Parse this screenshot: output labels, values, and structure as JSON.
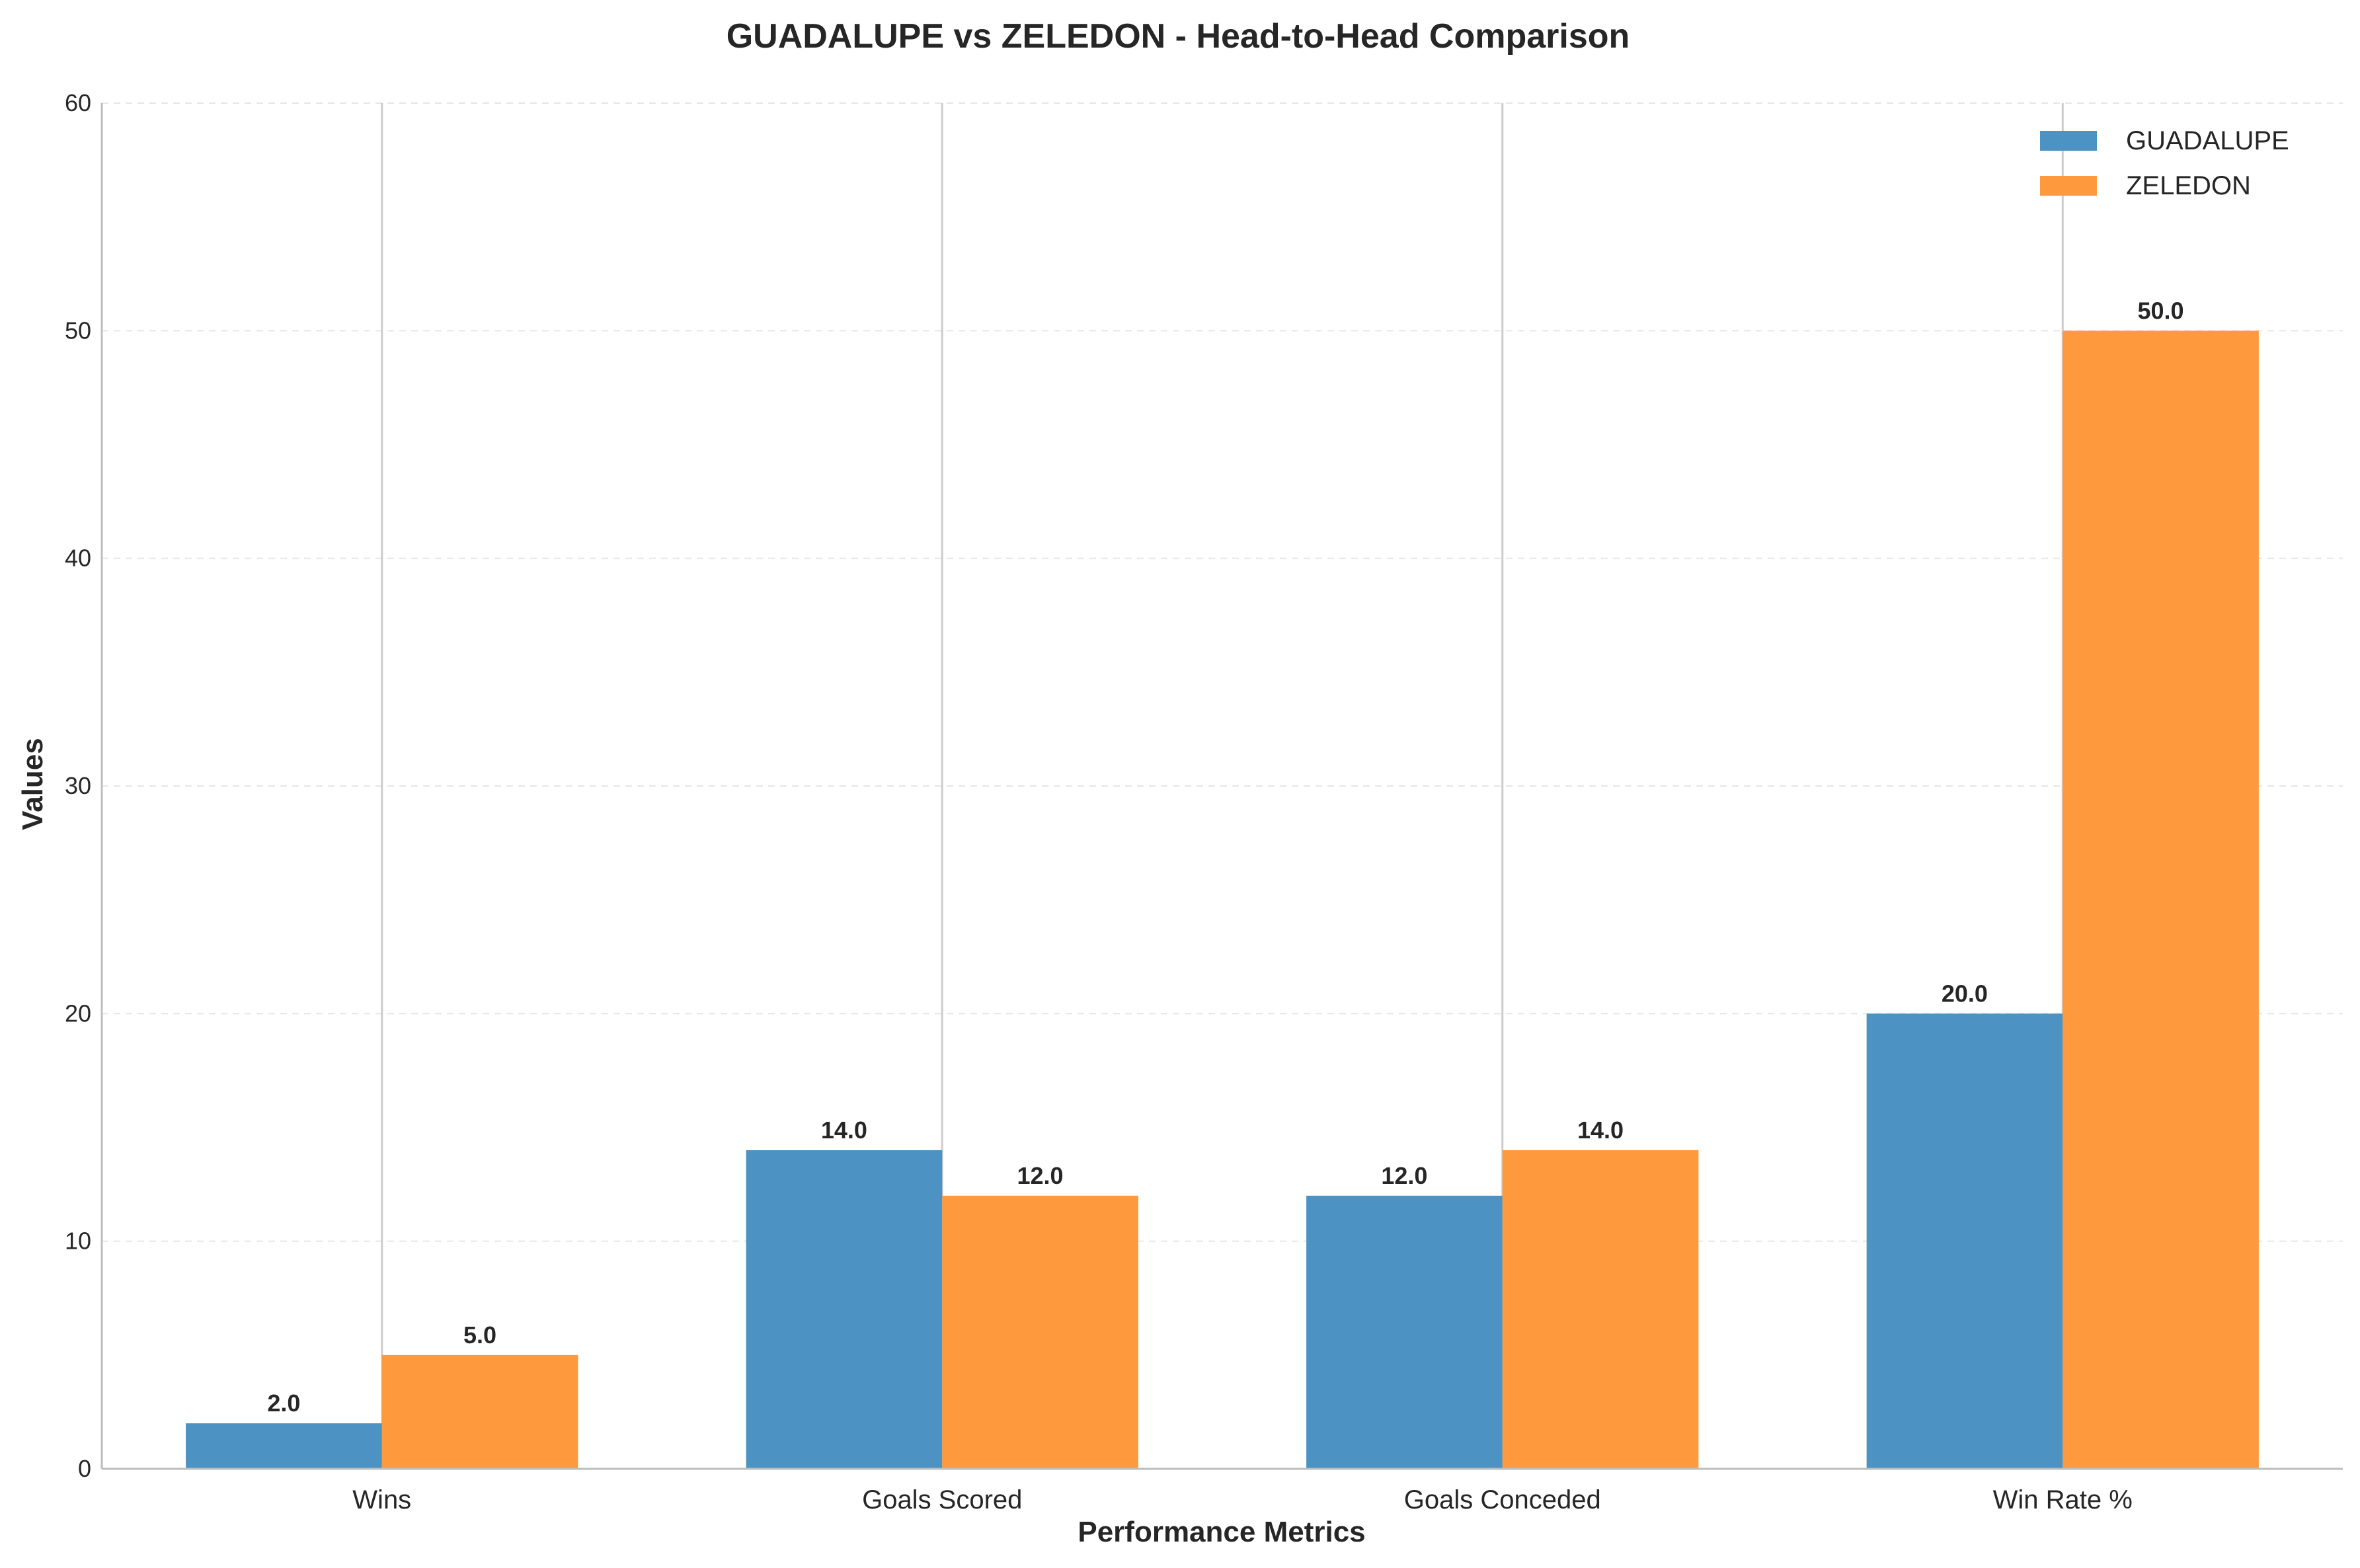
{
  "chart_data": {
    "type": "bar",
    "title": "GUADALUPE vs ZELEDON - Head-to-Head Comparison",
    "xlabel": "Performance Metrics",
    "ylabel": "Values",
    "categories": [
      "Wins",
      "Goals Scored",
      "Goals Conceded",
      "Win Rate %"
    ],
    "series": [
      {
        "name": "GUADALUPE",
        "color": "#4c92c3",
        "values": [
          2.0,
          14.0,
          12.0,
          20.0
        ],
        "labels": [
          "2.0",
          "14.0",
          "12.0",
          "20.0"
        ]
      },
      {
        "name": "ZELEDON",
        "color": "#ff993e",
        "values": [
          5.0,
          12.0,
          14.0,
          50.0
        ],
        "labels": [
          "5.0",
          "12.0",
          "14.0",
          "50.0"
        ]
      }
    ],
    "ylim": [
      0,
      60
    ],
    "yticks": [
      0,
      10,
      20,
      30,
      40,
      50,
      60
    ],
    "ytick_labels": [
      "0",
      "10",
      "20",
      "30",
      "40",
      "50",
      "60"
    ],
    "grid": true,
    "legend_position": "top-right"
  }
}
